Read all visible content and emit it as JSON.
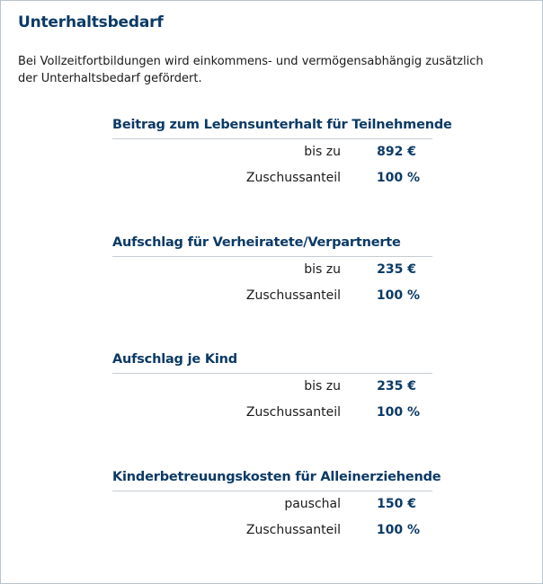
{
  "title": "Unterhaltsbedarf",
  "intro": "Bei Vollzeitfortbildungen wird einkommens- und vermögensabhängig zusätzlich der Unterhaltsbedarf gefördert.",
  "sections": [
    {
      "heading": "Beitrag zum Lebensunterhalt für Teilnehmende",
      "rows": [
        {
          "label": "bis zu",
          "value": "892 €"
        },
        {
          "label": "Zuschussanteil",
          "value": "100 %"
        }
      ]
    },
    {
      "heading": "Aufschlag für Verheiratete/Verpartnerte",
      "rows": [
        {
          "label": "bis zu",
          "value": "235 €"
        },
        {
          "label": "Zuschussanteil",
          "value": "100 %"
        }
      ]
    },
    {
      "heading": "Aufschlag je Kind",
      "rows": [
        {
          "label": "bis zu",
          "value": "235 €"
        },
        {
          "label": "Zuschussanteil",
          "value": "100 %"
        }
      ]
    },
    {
      "heading": "Kinderbetreuungskosten für Alleinerziehende",
      "rows": [
        {
          "label": "pauschal",
          "value": "150 €"
        },
        {
          "label": "Zuschussanteil",
          "value": "100 %"
        }
      ]
    }
  ]
}
